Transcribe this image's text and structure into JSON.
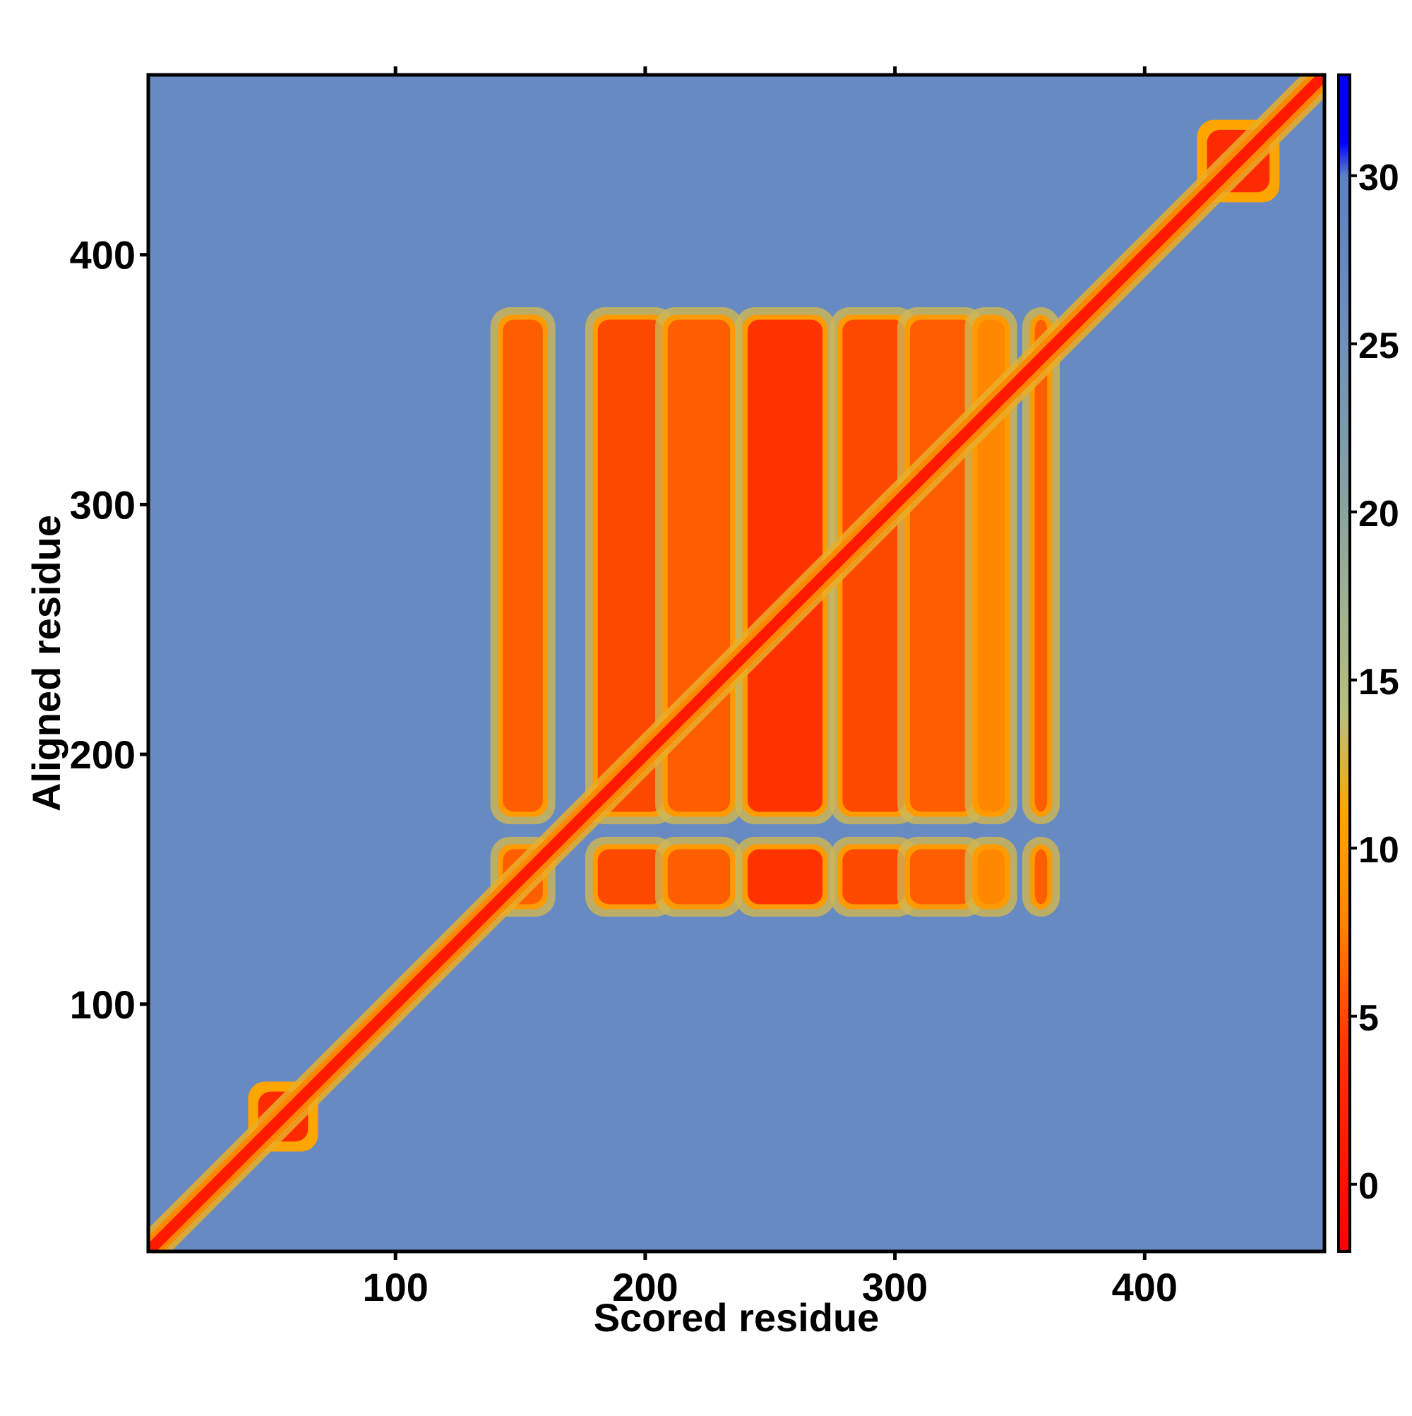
{
  "chart_data": {
    "type": "heatmap",
    "title": "",
    "xlabel": "Scored residue",
    "ylabel": "Aligned residue",
    "xlim": [
      1,
      472
    ],
    "ylim": [
      1,
      472
    ],
    "x_ticks": [
      100,
      200,
      300,
      400
    ],
    "y_ticks": [
      100,
      200,
      300,
      400
    ],
    "colorbar": {
      "range": [
        -2,
        33
      ],
      "ticks": [
        0,
        5,
        10,
        15,
        20,
        25,
        30
      ],
      "stops": [
        {
          "value": -2,
          "color": "#ff0000"
        },
        {
          "value": 4,
          "color": "#ff3300"
        },
        {
          "value": 8,
          "color": "#ff8800"
        },
        {
          "value": 11,
          "color": "#ffa500"
        },
        {
          "value": 14,
          "color": "#b9c07c"
        },
        {
          "value": 20,
          "color": "#8aa4a0"
        },
        {
          "value": 26,
          "color": "#6a8cc0"
        },
        {
          "value": 30,
          "color": "#5a82c4"
        },
        {
          "value": 31,
          "color": "#0000ff"
        }
      ]
    },
    "background_value": 27,
    "diagonal_value": 1,
    "domains": [
      {
        "residues": [
          45,
          65
        ],
        "value": 3
      },
      {
        "residues": [
          425,
          450
        ],
        "value": 3
      }
    ],
    "block_rows": [
      [
        138,
        164
      ],
      [
        175,
        376
      ]
    ],
    "block_columns": [
      {
        "residues": [
          142,
          160
        ],
        "value": 6
      },
      {
        "residues": [
          180,
          208
        ],
        "value": 5
      },
      {
        "residues": [
          208,
          235
        ],
        "value": 6
      },
      {
        "residues": [
          240,
          272
        ],
        "value": 4
      },
      {
        "residues": [
          278,
          305
        ],
        "value": 5
      },
      {
        "residues": [
          305,
          332
        ],
        "value": 6
      },
      {
        "residues": [
          332,
          345
        ],
        "value": 8
      },
      {
        "residues": [
          355,
          362
        ],
        "value": 6
      }
    ]
  }
}
